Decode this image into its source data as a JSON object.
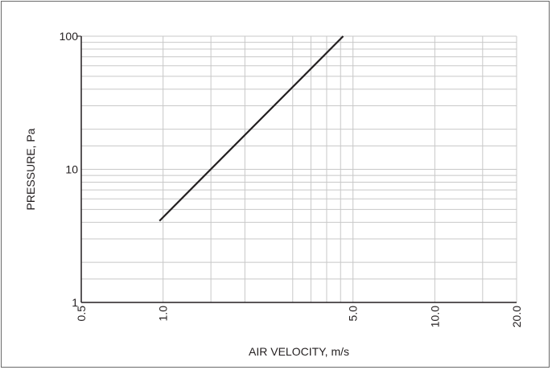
{
  "chart_data": {
    "type": "line",
    "xlabel": "AIR VELOCITY, m/s",
    "ylabel": "PRESSURE, Pa",
    "x_scale": "log",
    "y_scale": "log",
    "xlim": [
      0.5,
      20.0
    ],
    "ylim": [
      1,
      100
    ],
    "x_ticks": [
      {
        "value": 0.5,
        "label": "0.5"
      },
      {
        "value": 1.0,
        "label": "1.0"
      },
      {
        "value": 5.0,
        "label": "5.0"
      },
      {
        "value": 10.0,
        "label": "10.0"
      },
      {
        "value": 20.0,
        "label": "20.0"
      }
    ],
    "y_ticks": [
      {
        "value": 1,
        "label": "1"
      },
      {
        "value": 10,
        "label": "10"
      },
      {
        "value": 100,
        "label": "100"
      }
    ],
    "x_minor_grid": [
      1.5,
      2.0,
      3.0,
      3.5,
      4.0,
      4.5,
      15.0
    ],
    "y_minor_grid": [
      1.5,
      2,
      3,
      4,
      5,
      6,
      7,
      8,
      9,
      15,
      20,
      30,
      40,
      50,
      60,
      70,
      80,
      90
    ],
    "grid": true,
    "series": [
      {
        "values": [
          {
            "x": 0.97,
            "y": 4.1
          },
          {
            "x": 4.6,
            "y": 100
          }
        ]
      }
    ],
    "colors": {
      "line": "#231f20",
      "grid": "#c8c8c8",
      "axis": "#231f20"
    }
  }
}
